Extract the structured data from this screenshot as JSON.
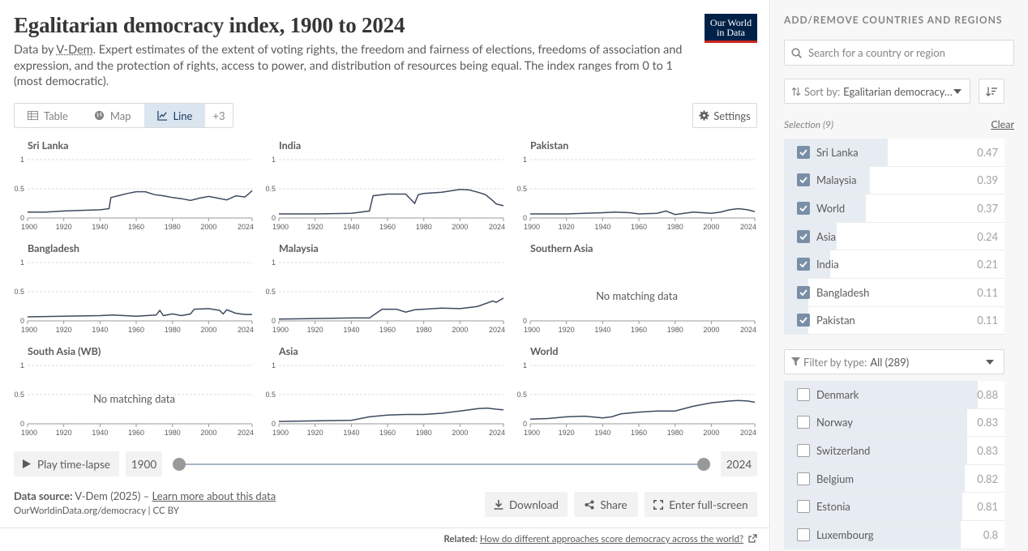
{
  "header": {
    "title": "Egalitarian democracy index, 1900 to 2024",
    "subtitle_prefix": "Data by ",
    "subtitle_source": "V-Dem",
    "subtitle_rest": ". Expert estimates of the extent of voting rights, the freedom and fairness of elections, freedoms of association and expression, and the protection of rights, access to power, and distribution of resources being equal. The index ranges from 0 to 1 (most democratic).",
    "logo_line1": "Our World",
    "logo_line2": "in Data"
  },
  "tabs": [
    {
      "label": "Table",
      "icon": "table-icon"
    },
    {
      "label": "Map",
      "icon": "globe-icon"
    },
    {
      "label": "Line",
      "icon": "line-chart-icon",
      "active": true
    },
    {
      "label": "+3"
    }
  ],
  "settings_label": "Settings",
  "chart_data": [
    {
      "type": "line",
      "title": "Sri Lanka",
      "xticks": [
        "1900",
        "1920",
        "1940",
        "1960",
        "1980",
        "2000",
        "2024"
      ],
      "yticks": [
        "0",
        "0.5",
        "1"
      ],
      "ylim": [
        0,
        1
      ],
      "x": [
        1900,
        1910,
        1920,
        1930,
        1940,
        1945,
        1946,
        1950,
        1955,
        1960,
        1965,
        1970,
        1975,
        1980,
        1985,
        1990,
        1995,
        2000,
        2005,
        2010,
        2015,
        2020,
        2022,
        2024
      ],
      "values": [
        0.1,
        0.1,
        0.12,
        0.13,
        0.14,
        0.16,
        0.35,
        0.38,
        0.42,
        0.45,
        0.45,
        0.4,
        0.38,
        0.35,
        0.33,
        0.3,
        0.34,
        0.37,
        0.34,
        0.31,
        0.38,
        0.36,
        0.41,
        0.47
      ]
    },
    {
      "type": "line",
      "title": "India",
      "xticks": [
        "1900",
        "1920",
        "1940",
        "1960",
        "1980",
        "2000",
        "2024"
      ],
      "yticks": [
        "0",
        "0.5",
        "1"
      ],
      "ylim": [
        0,
        1
      ],
      "x": [
        1900,
        1920,
        1940,
        1950,
        1952,
        1960,
        1970,
        1975,
        1977,
        1980,
        1990,
        2000,
        2005,
        2010,
        2014,
        2018,
        2020,
        2024
      ],
      "values": [
        0.07,
        0.07,
        0.08,
        0.12,
        0.38,
        0.41,
        0.41,
        0.25,
        0.4,
        0.42,
        0.44,
        0.49,
        0.48,
        0.44,
        0.4,
        0.3,
        0.24,
        0.21
      ]
    },
    {
      "type": "line",
      "title": "Pakistan",
      "xticks": [
        "1900",
        "1920",
        "1940",
        "1960",
        "1980",
        "2000",
        "2024"
      ],
      "yticks": [
        "0",
        "0.5",
        "1"
      ],
      "ylim": [
        0,
        1
      ],
      "x": [
        1900,
        1920,
        1940,
        1947,
        1955,
        1960,
        1970,
        1975,
        1980,
        1990,
        2000,
        2005,
        2010,
        2015,
        2020,
        2024
      ],
      "values": [
        0.07,
        0.07,
        0.09,
        0.1,
        0.09,
        0.07,
        0.08,
        0.12,
        0.06,
        0.1,
        0.08,
        0.1,
        0.14,
        0.16,
        0.14,
        0.11
      ]
    },
    {
      "type": "line",
      "title": "Bangladesh",
      "xticks": [
        "1900",
        "1920",
        "1940",
        "1960",
        "1980",
        "2000",
        "2024"
      ],
      "yticks": [
        "0",
        "0.5",
        "1"
      ],
      "ylim": [
        0,
        1
      ],
      "x": [
        1900,
        1920,
        1940,
        1947,
        1960,
        1971,
        1973,
        1975,
        1980,
        1985,
        1990,
        1992,
        2000,
        2006,
        2008,
        2010,
        2015,
        2020,
        2024
      ],
      "values": [
        0.07,
        0.08,
        0.09,
        0.1,
        0.08,
        0.1,
        0.18,
        0.09,
        0.12,
        0.09,
        0.12,
        0.2,
        0.21,
        0.18,
        0.12,
        0.19,
        0.13,
        0.11,
        0.11
      ]
    },
    {
      "type": "line",
      "title": "Malaysia",
      "xticks": [
        "1900",
        "1920",
        "1940",
        "1960",
        "1980",
        "2000",
        "2024"
      ],
      "yticks": [
        "0",
        "0.5",
        "1"
      ],
      "ylim": [
        0,
        1
      ],
      "x": [
        1900,
        1920,
        1940,
        1950,
        1957,
        1965,
        1970,
        1975,
        1980,
        1990,
        2000,
        2008,
        2010,
        2018,
        2020,
        2024
      ],
      "values": [
        0.03,
        0.04,
        0.05,
        0.05,
        0.2,
        0.2,
        0.15,
        0.19,
        0.2,
        0.22,
        0.21,
        0.24,
        0.25,
        0.34,
        0.32,
        0.39
      ]
    },
    {
      "type": "line",
      "title": "Southern Asia",
      "xticks": [
        "1900",
        "1920",
        "1940",
        "1960",
        "1980",
        "2000",
        "2024"
      ],
      "yticks": [
        "0"
      ],
      "ylim": [
        0,
        1
      ],
      "x": [],
      "values": [],
      "nodata": "No matching data"
    },
    {
      "type": "line",
      "title": "South Asia (WB)",
      "xticks": [
        "1900",
        "1920",
        "1940",
        "1960",
        "1980",
        "2000",
        "2024"
      ],
      "yticks": [
        "0",
        "0.5",
        "1"
      ],
      "ylim": [
        0,
        1
      ],
      "x": [],
      "values": [],
      "nodata": "No matching data"
    },
    {
      "type": "line",
      "title": "Asia",
      "xticks": [
        "1900",
        "1920",
        "1940",
        "1960",
        "1980",
        "2000",
        "2024"
      ],
      "yticks": [
        "0",
        "0.5",
        "1"
      ],
      "ylim": [
        0,
        1
      ],
      "x": [
        1900,
        1920,
        1940,
        1950,
        1960,
        1970,
        1980,
        1990,
        2000,
        2010,
        2015,
        2020,
        2024
      ],
      "values": [
        0.04,
        0.05,
        0.06,
        0.12,
        0.15,
        0.16,
        0.16,
        0.18,
        0.22,
        0.26,
        0.27,
        0.25,
        0.24
      ]
    },
    {
      "type": "line",
      "title": "World",
      "xticks": [
        "1900",
        "1920",
        "1940",
        "1960",
        "1980",
        "2000",
        "2024"
      ],
      "yticks": [
        "0",
        "0.5",
        "1"
      ],
      "ylim": [
        0,
        1
      ],
      "x": [
        1900,
        1910,
        1920,
        1930,
        1940,
        1945,
        1950,
        1960,
        1970,
        1980,
        1990,
        2000,
        2010,
        2015,
        2020,
        2024
      ],
      "values": [
        0.08,
        0.09,
        0.12,
        0.13,
        0.1,
        0.12,
        0.17,
        0.2,
        0.22,
        0.22,
        0.3,
        0.36,
        0.39,
        0.4,
        0.39,
        0.37
      ]
    }
  ],
  "timeline": {
    "play_label": "Play time-lapse",
    "start": "1900",
    "end": "2024"
  },
  "footer": {
    "source_label": "Data source:",
    "source_text": " V-Dem (2025) – ",
    "learn_more": "Learn more about this data",
    "cite": "OurWorldinData.org/democracy | CC BY",
    "download": "Download",
    "share": "Share",
    "fullscreen": "Enter full-screen",
    "related_label": "Related:",
    "related_link": "How do different approaches score democracy across the world?"
  },
  "sidebar": {
    "heading": "ADD/REMOVE COUNTRIES AND REGIONS",
    "search_placeholder": "Search for a country or region",
    "sort_label": "Sort by:",
    "sort_value": "Egalitarian democracy index",
    "selection_label": "Selection (9)",
    "clear_label": "Clear",
    "selected": [
      {
        "name": "Sri Lanka",
        "value": "0.47",
        "frac": 0.47
      },
      {
        "name": "Malaysia",
        "value": "0.39",
        "frac": 0.39
      },
      {
        "name": "World",
        "value": "0.37",
        "frac": 0.37
      },
      {
        "name": "Asia",
        "value": "0.24",
        "frac": 0.24
      },
      {
        "name": "India",
        "value": "0.21",
        "frac": 0.21
      },
      {
        "name": "Bangladesh",
        "value": "0.11",
        "frac": 0.11
      },
      {
        "name": "Pakistan",
        "value": "0.11",
        "frac": 0.11
      }
    ],
    "filter_label": "Filter by type:",
    "filter_value": "All (289)",
    "others": [
      {
        "name": "Denmark",
        "value": "0.88",
        "frac": 0.88
      },
      {
        "name": "Norway",
        "value": "0.83",
        "frac": 0.83
      },
      {
        "name": "Switzerland",
        "value": "0.83",
        "frac": 0.83
      },
      {
        "name": "Belgium",
        "value": "0.82",
        "frac": 0.82
      },
      {
        "name": "Estonia",
        "value": "0.81",
        "frac": 0.81
      },
      {
        "name": "Luxembourg",
        "value": "0.8",
        "frac": 0.8
      }
    ]
  }
}
